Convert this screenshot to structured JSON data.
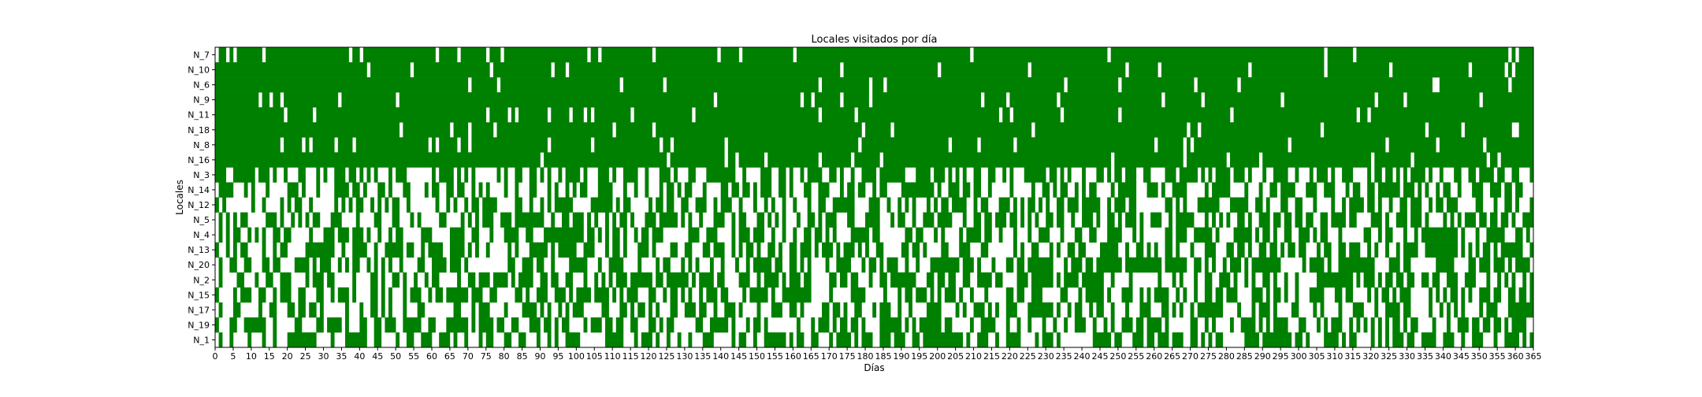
{
  "chart_data": {
    "type": "heatmap",
    "title": "Locales visitados por día",
    "xlabel": "Días",
    "ylabel": "Locales",
    "xlim": [
      0,
      365
    ],
    "x_tick_step": 5,
    "rows": [
      "N_7",
      "N_10",
      "N_6",
      "N_9",
      "N_11",
      "N_18",
      "N_8",
      "N_16",
      "N_3",
      "N_14",
      "N_12",
      "N_5",
      "N_4",
      "N_13",
      "N_20",
      "N_2",
      "N_15",
      "N_17",
      "N_19",
      "N_1"
    ],
    "visited_color": "#008000",
    "not_visited_color": "#ffffff",
    "row_visit_rates": [
      0.95,
      0.95,
      0.95,
      0.95,
      0.95,
      0.95,
      0.95,
      0.95,
      0.5,
      0.5,
      0.5,
      0.5,
      0.5,
      0.5,
      0.5,
      0.5,
      0.5,
      0.5,
      0.5,
      0.5
    ],
    "grid": false,
    "legend": "none"
  }
}
